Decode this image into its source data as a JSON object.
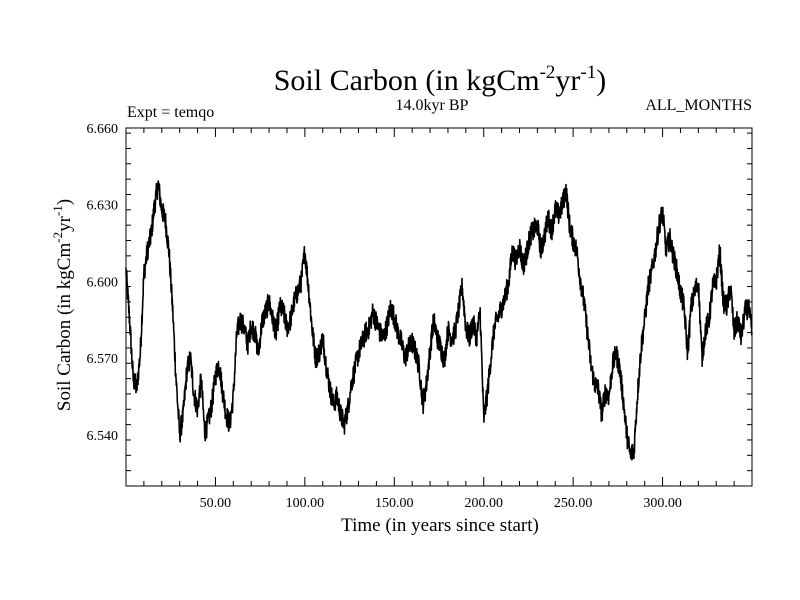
{
  "chart_data": {
    "type": "line",
    "title": {
      "main": "Soil Carbon (in kgCm",
      "exp1": "-2",
      "mid": "yr",
      "exp2": "-1",
      "end": ")"
    },
    "subtitle_left": "Expt = temqo",
    "subtitle_center": "14.0kyr BP",
    "subtitle_right": "ALL_MONTHS",
    "xlabel": "Time (in years since start)",
    "ylabel": {
      "main": "Soil Carbon (in kgCm",
      "exp1": "-2",
      "mid": "yr",
      "exp2": "-1",
      "end": ")"
    },
    "xlim": [
      0,
      350
    ],
    "ylim": [
      6.52,
      6.66
    ],
    "x_ticks": [
      50,
      100,
      150,
      200,
      250,
      300
    ],
    "x_tick_labels": [
      "50.00",
      "100.00",
      "150.00",
      "200.00",
      "250.00",
      "300.00"
    ],
    "y_ticks": [
      6.54,
      6.57,
      6.6,
      6.63,
      6.66
    ],
    "y_tick_labels": [
      "6.540",
      "6.570",
      "6.600",
      "6.630",
      "6.660"
    ],
    "grid": false,
    "series": [
      {
        "x": [
          0,
          2,
          4,
          6,
          8,
          10,
          12,
          14,
          16,
          18,
          20,
          22,
          24,
          26,
          28,
          30,
          32,
          34,
          36,
          38,
          40,
          42,
          44,
          46,
          48,
          50,
          52,
          54,
          56,
          58,
          60,
          62,
          64,
          66,
          68,
          70,
          72,
          74,
          76,
          78,
          80,
          82,
          84,
          86,
          88,
          90,
          92,
          94,
          96,
          98,
          100,
          102,
          104,
          106,
          108,
          110,
          112,
          114,
          116,
          118,
          120,
          122,
          124,
          126,
          128,
          130,
          132,
          134,
          136,
          138,
          140,
          142,
          144,
          146,
          148,
          150,
          152,
          154,
          156,
          158,
          160,
          162,
          164,
          166,
          168,
          170,
          172,
          174,
          176,
          178,
          180,
          182,
          184,
          186,
          188,
          190,
          192,
          194,
          196,
          198,
          200,
          202,
          204,
          206,
          208,
          210,
          212,
          214,
          216,
          218,
          220,
          222,
          224,
          226,
          228,
          230,
          232,
          234,
          236,
          238,
          240,
          242,
          244,
          246,
          248,
          250,
          252,
          254,
          256,
          258,
          260,
          262,
          264,
          266,
          268,
          270,
          272,
          274,
          276,
          278,
          280,
          282,
          284,
          286,
          288,
          290,
          292,
          294,
          296,
          298,
          300,
          302,
          304,
          306,
          308,
          310,
          312,
          314,
          316,
          318,
          320,
          322,
          324,
          326,
          328,
          330,
          332,
          334,
          336,
          338,
          340,
          342,
          344,
          346,
          348,
          350
        ],
        "y": [
          6.604,
          6.585,
          6.562,
          6.558,
          6.572,
          6.603,
          6.612,
          6.618,
          6.63,
          6.638,
          6.628,
          6.624,
          6.612,
          6.59,
          6.562,
          6.54,
          6.548,
          6.565,
          6.57,
          6.556,
          6.55,
          6.562,
          6.541,
          6.545,
          6.552,
          6.563,
          6.568,
          6.557,
          6.548,
          6.544,
          6.555,
          6.58,
          6.585,
          6.582,
          6.575,
          6.583,
          6.58,
          6.572,
          6.584,
          6.588,
          6.592,
          6.585,
          6.58,
          6.59,
          6.588,
          6.582,
          6.585,
          6.592,
          6.596,
          6.6,
          6.612,
          6.598,
          6.582,
          6.57,
          6.572,
          6.578,
          6.567,
          6.558,
          6.552,
          6.555,
          6.548,
          6.544,
          6.55,
          6.56,
          6.566,
          6.572,
          6.576,
          6.58,
          6.582,
          6.588,
          6.584,
          6.58,
          6.578,
          6.583,
          6.59,
          6.586,
          6.58,
          6.576,
          6.57,
          6.574,
          6.576,
          6.572,
          6.566,
          6.552,
          6.56,
          6.573,
          6.585,
          6.578,
          6.574,
          6.569,
          6.581,
          6.578,
          6.58,
          6.589,
          6.598,
          6.582,
          6.578,
          6.584,
          6.578,
          6.588,
          6.546,
          6.556,
          6.57,
          6.582,
          6.586,
          6.59,
          6.594,
          6.6,
          6.612,
          6.608,
          6.614,
          6.606,
          6.611,
          6.618,
          6.62,
          6.622,
          6.612,
          6.618,
          6.625,
          6.62,
          6.628,
          6.626,
          6.63,
          6.636,
          6.622,
          6.616,
          6.612,
          6.601,
          6.592,
          6.58,
          6.567,
          6.56,
          6.558,
          6.548,
          6.557,
          6.555,
          6.567,
          6.572,
          6.566,
          6.554,
          6.54,
          6.532,
          6.534,
          6.556,
          6.574,
          6.585,
          6.598,
          6.604,
          6.612,
          6.622,
          6.627,
          6.612,
          6.617,
          6.61,
          6.604,
          6.596,
          6.59,
          6.572,
          6.59,
          6.596,
          6.6,
          6.57,
          6.581,
          6.585,
          6.598,
          6.6,
          6.612,
          6.592,
          6.59,
          6.598,
          6.58,
          6.585,
          6.578,
          6.588,
          6.59,
          6.58
        ],
        "style": "noisy line",
        "color": "#000000"
      }
    ]
  }
}
